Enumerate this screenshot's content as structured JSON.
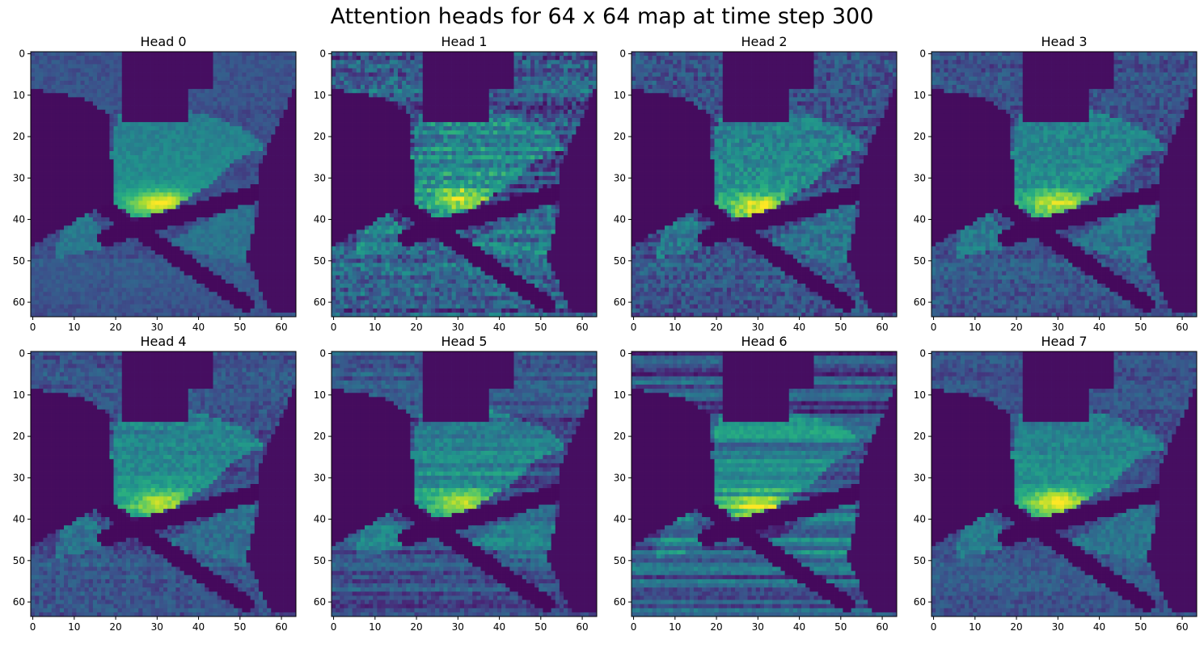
{
  "chart_data": {
    "type": "heatmap",
    "title": "Attention heads for 64 x 64 map at time step 300",
    "colormap": "viridis",
    "grid": false,
    "xlim": [
      -0.5,
      63.5
    ],
    "ylim": [
      63.5,
      -0.5
    ],
    "x_ticks": [
      "0",
      "10",
      "20",
      "30",
      "40",
      "50",
      "60"
    ],
    "y_ticks": [
      "0",
      "10",
      "20",
      "30",
      "40",
      "50",
      "60"
    ],
    "panels": [
      {
        "title": "Head 0",
        "hotspot": [
          31,
          36
        ],
        "peak": 1.0,
        "noise": 0.1,
        "streaks": 0.0
      },
      {
        "title": "Head 1",
        "hotspot": [
          31,
          35
        ],
        "peak": 0.8,
        "noise": 0.28,
        "streaks": 0.25
      },
      {
        "title": "Head 2",
        "hotspot": [
          30,
          37
        ],
        "peak": 0.95,
        "noise": 0.22,
        "streaks": 0.05
      },
      {
        "title": "Head 3",
        "hotspot": [
          30,
          36
        ],
        "peak": 0.85,
        "noise": 0.18,
        "streaks": 0.05
      },
      {
        "title": "Head 4",
        "hotspot": [
          31,
          36
        ],
        "peak": 0.82,
        "noise": 0.16,
        "streaks": 0.08
      },
      {
        "title": "Head 5",
        "hotspot": [
          31,
          36
        ],
        "peak": 0.85,
        "noise": 0.15,
        "streaks": 0.18
      },
      {
        "title": "Head 6",
        "hotspot": [
          30,
          37
        ],
        "peak": 0.85,
        "noise": 0.12,
        "streaks": 0.35
      },
      {
        "title": "Head 7",
        "hotspot": [
          30,
          36
        ],
        "peak": 1.0,
        "noise": 0.14,
        "streaks": 0.05
      }
    ]
  }
}
